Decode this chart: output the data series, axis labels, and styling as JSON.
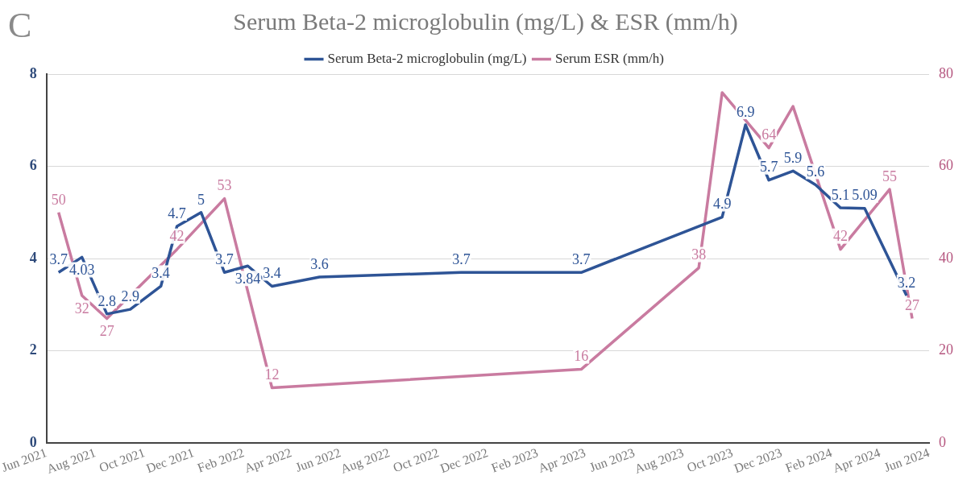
{
  "chart_data": {
    "type": "line",
    "title": "Serum Beta-2 microglobulin (mg/L) & ESR (mm/h)",
    "annotations": [
      "C"
    ],
    "series": [
      {
        "name": "Serum Beta-2 microglobulin (mg/L)",
        "color": "#2e5496",
        "axis": "y",
        "x": [
          "2021-06-16",
          "2021-07-15",
          "2021-08-15",
          "2021-09-13",
          "2021-10-21",
          "2021-11-10",
          "2021-12-10",
          "2022-01-08",
          "2022-02-06",
          "2022-03-08",
          "2022-05-06",
          "2022-10-29",
          "2023-03-27",
          "2023-09-18",
          "2023-10-17",
          "2023-11-15",
          "2023-12-15",
          "2024-01-12",
          "2024-02-12",
          "2024-03-13",
          "2024-05-04"
        ],
        "values": [
          3.7,
          4.03,
          2.8,
          2.9,
          3.4,
          4.7,
          5,
          3.7,
          3.84,
          3.4,
          3.6,
          3.7,
          3.7,
          4.9,
          6.9,
          5.7,
          5.9,
          5.6,
          5.1,
          5.09,
          3.2
        ],
        "value_labels": [
          "3.7",
          "4.03",
          "2.8",
          "2.9",
          "3.4",
          "4.7",
          "5",
          "3.7",
          "3.84",
          "3.4",
          "3.6",
          "3.7",
          "3.7",
          "4.9",
          "6.9",
          "5.7",
          "5.9",
          "5.6",
          "5.1",
          "5.09",
          "3.2"
        ]
      },
      {
        "name": "Serum ESR (mm/h)",
        "color": "#c97ba0",
        "axis": "y2",
        "x": [
          "2021-06-16",
          "2021-07-15",
          "2021-08-15",
          "2021-11-10",
          "2022-01-08",
          "2022-03-08",
          "2023-03-27",
          "2023-08-20",
          "2023-09-18",
          "2023-11-15",
          "2023-12-15",
          "2024-02-12",
          "2024-04-13",
          "2024-05-11"
        ],
        "values": [
          50,
          32,
          27,
          42,
          53,
          12,
          16,
          38,
          76,
          64,
          73,
          42,
          55,
          27
        ],
        "value_labels": [
          "50",
          "32",
          "27",
          "42",
          "53",
          "12",
          "16",
          "38",
          null,
          "64",
          null,
          "42",
          "55",
          "27"
        ]
      }
    ],
    "xlim": [
      "2021-06-01",
      "2024-06-01"
    ],
    "xticks": [
      {
        "value": "2021-06-01",
        "label": "Jun 2021"
      },
      {
        "value": "2021-08-01",
        "label": "Aug 2021"
      },
      {
        "value": "2021-10-01",
        "label": "Oct 2021"
      },
      {
        "value": "2021-12-01",
        "label": "Dec 2021"
      },
      {
        "value": "2022-02-01",
        "label": "Feb 2022"
      },
      {
        "value": "2022-04-01",
        "label": "Apr 2022"
      },
      {
        "value": "2022-06-01",
        "label": "Jun 2022"
      },
      {
        "value": "2022-08-01",
        "label": "Aug 2022"
      },
      {
        "value": "2022-10-01",
        "label": "Oct 2022"
      },
      {
        "value": "2022-12-01",
        "label": "Dec 2022"
      },
      {
        "value": "2023-02-01",
        "label": "Feb 2023"
      },
      {
        "value": "2023-04-01",
        "label": "Apr 2023"
      },
      {
        "value": "2023-06-01",
        "label": "Jun 2023"
      },
      {
        "value": "2023-08-01",
        "label": "Aug 2023"
      },
      {
        "value": "2023-10-01",
        "label": "Oct 2023"
      },
      {
        "value": "2023-12-01",
        "label": "Dec 2023"
      },
      {
        "value": "2024-02-01",
        "label": "Feb 2024"
      },
      {
        "value": "2024-04-01",
        "label": "Apr 2024"
      },
      {
        "value": "2024-06-01",
        "label": "Jun 2024"
      }
    ],
    "ylim": [
      0,
      8
    ],
    "yticks": [
      0,
      2,
      4,
      6,
      8
    ],
    "y2lim": [
      0,
      80
    ],
    "y2ticks": [
      0,
      20,
      40,
      60,
      80
    ],
    "grid": "y",
    "legend": "top",
    "marker": "none",
    "line_style": "solid"
  }
}
